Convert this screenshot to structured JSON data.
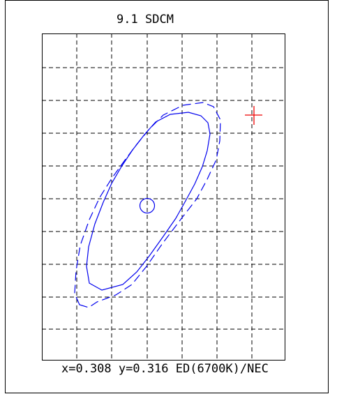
{
  "chart_data": {
    "type": "scatter",
    "title": "9.1 SDCM",
    "caption": "x=0.308 y=0.316 ED(6700K)/NEC",
    "grid": true,
    "colors": {
      "frame": "#000000",
      "grid": "#000000",
      "ellipse": "#0000ee",
      "target": "#ee0000"
    },
    "center_marker": {
      "x": 0.308,
      "y": 0.316,
      "shape": "circle"
    },
    "target_marker": {
      "shape": "cross"
    }
  }
}
